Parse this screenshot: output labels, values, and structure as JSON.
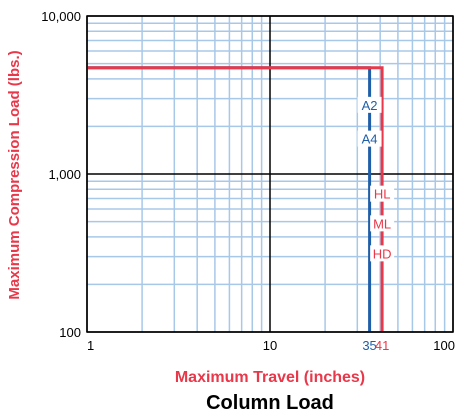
{
  "chart_data": {
    "type": "line",
    "title": "Column Load",
    "xlabel": "Maximum Travel (inches)",
    "ylabel": "Maximum Compression Load (lbs.)",
    "xscale": "log",
    "yscale": "log",
    "xlim": [
      1,
      100
    ],
    "ylim": [
      100,
      10000
    ],
    "grid": true,
    "x_ticks": [
      {
        "value": 1,
        "label": "1"
      },
      {
        "value": 10,
        "label": "10"
      },
      {
        "value": 100,
        "label": "100"
      }
    ],
    "y_ticks": [
      {
        "value": 100,
        "label": "100"
      },
      {
        "value": 1000,
        "label": "1,000"
      },
      {
        "value": 10000,
        "label": "10,000"
      }
    ],
    "extra_x_labels": [
      {
        "value": 35,
        "label": "35",
        "color": "#1f5fa8"
      },
      {
        "value": 41,
        "label": "41",
        "color": "#e8384a"
      }
    ],
    "series": [
      {
        "color": "#1f5fa8",
        "points": [
          [
            1,
            4700
          ],
          [
            35,
            4700
          ],
          [
            35,
            100
          ]
        ],
        "labels": [
          "A2",
          "A4"
        ]
      },
      {
        "color": "#e8384a",
        "points": [
          [
            1,
            4700
          ],
          [
            41,
            4700
          ],
          [
            41,
            100
          ]
        ],
        "labels": [
          "HL",
          "ML",
          "HD"
        ]
      }
    ],
    "colors": {
      "grid_minor": "#a8c8e8",
      "grid_major": "#000000",
      "axis_label": "#e8384a",
      "series_blue": "#1f5fa8",
      "series_red": "#e8384a"
    }
  }
}
